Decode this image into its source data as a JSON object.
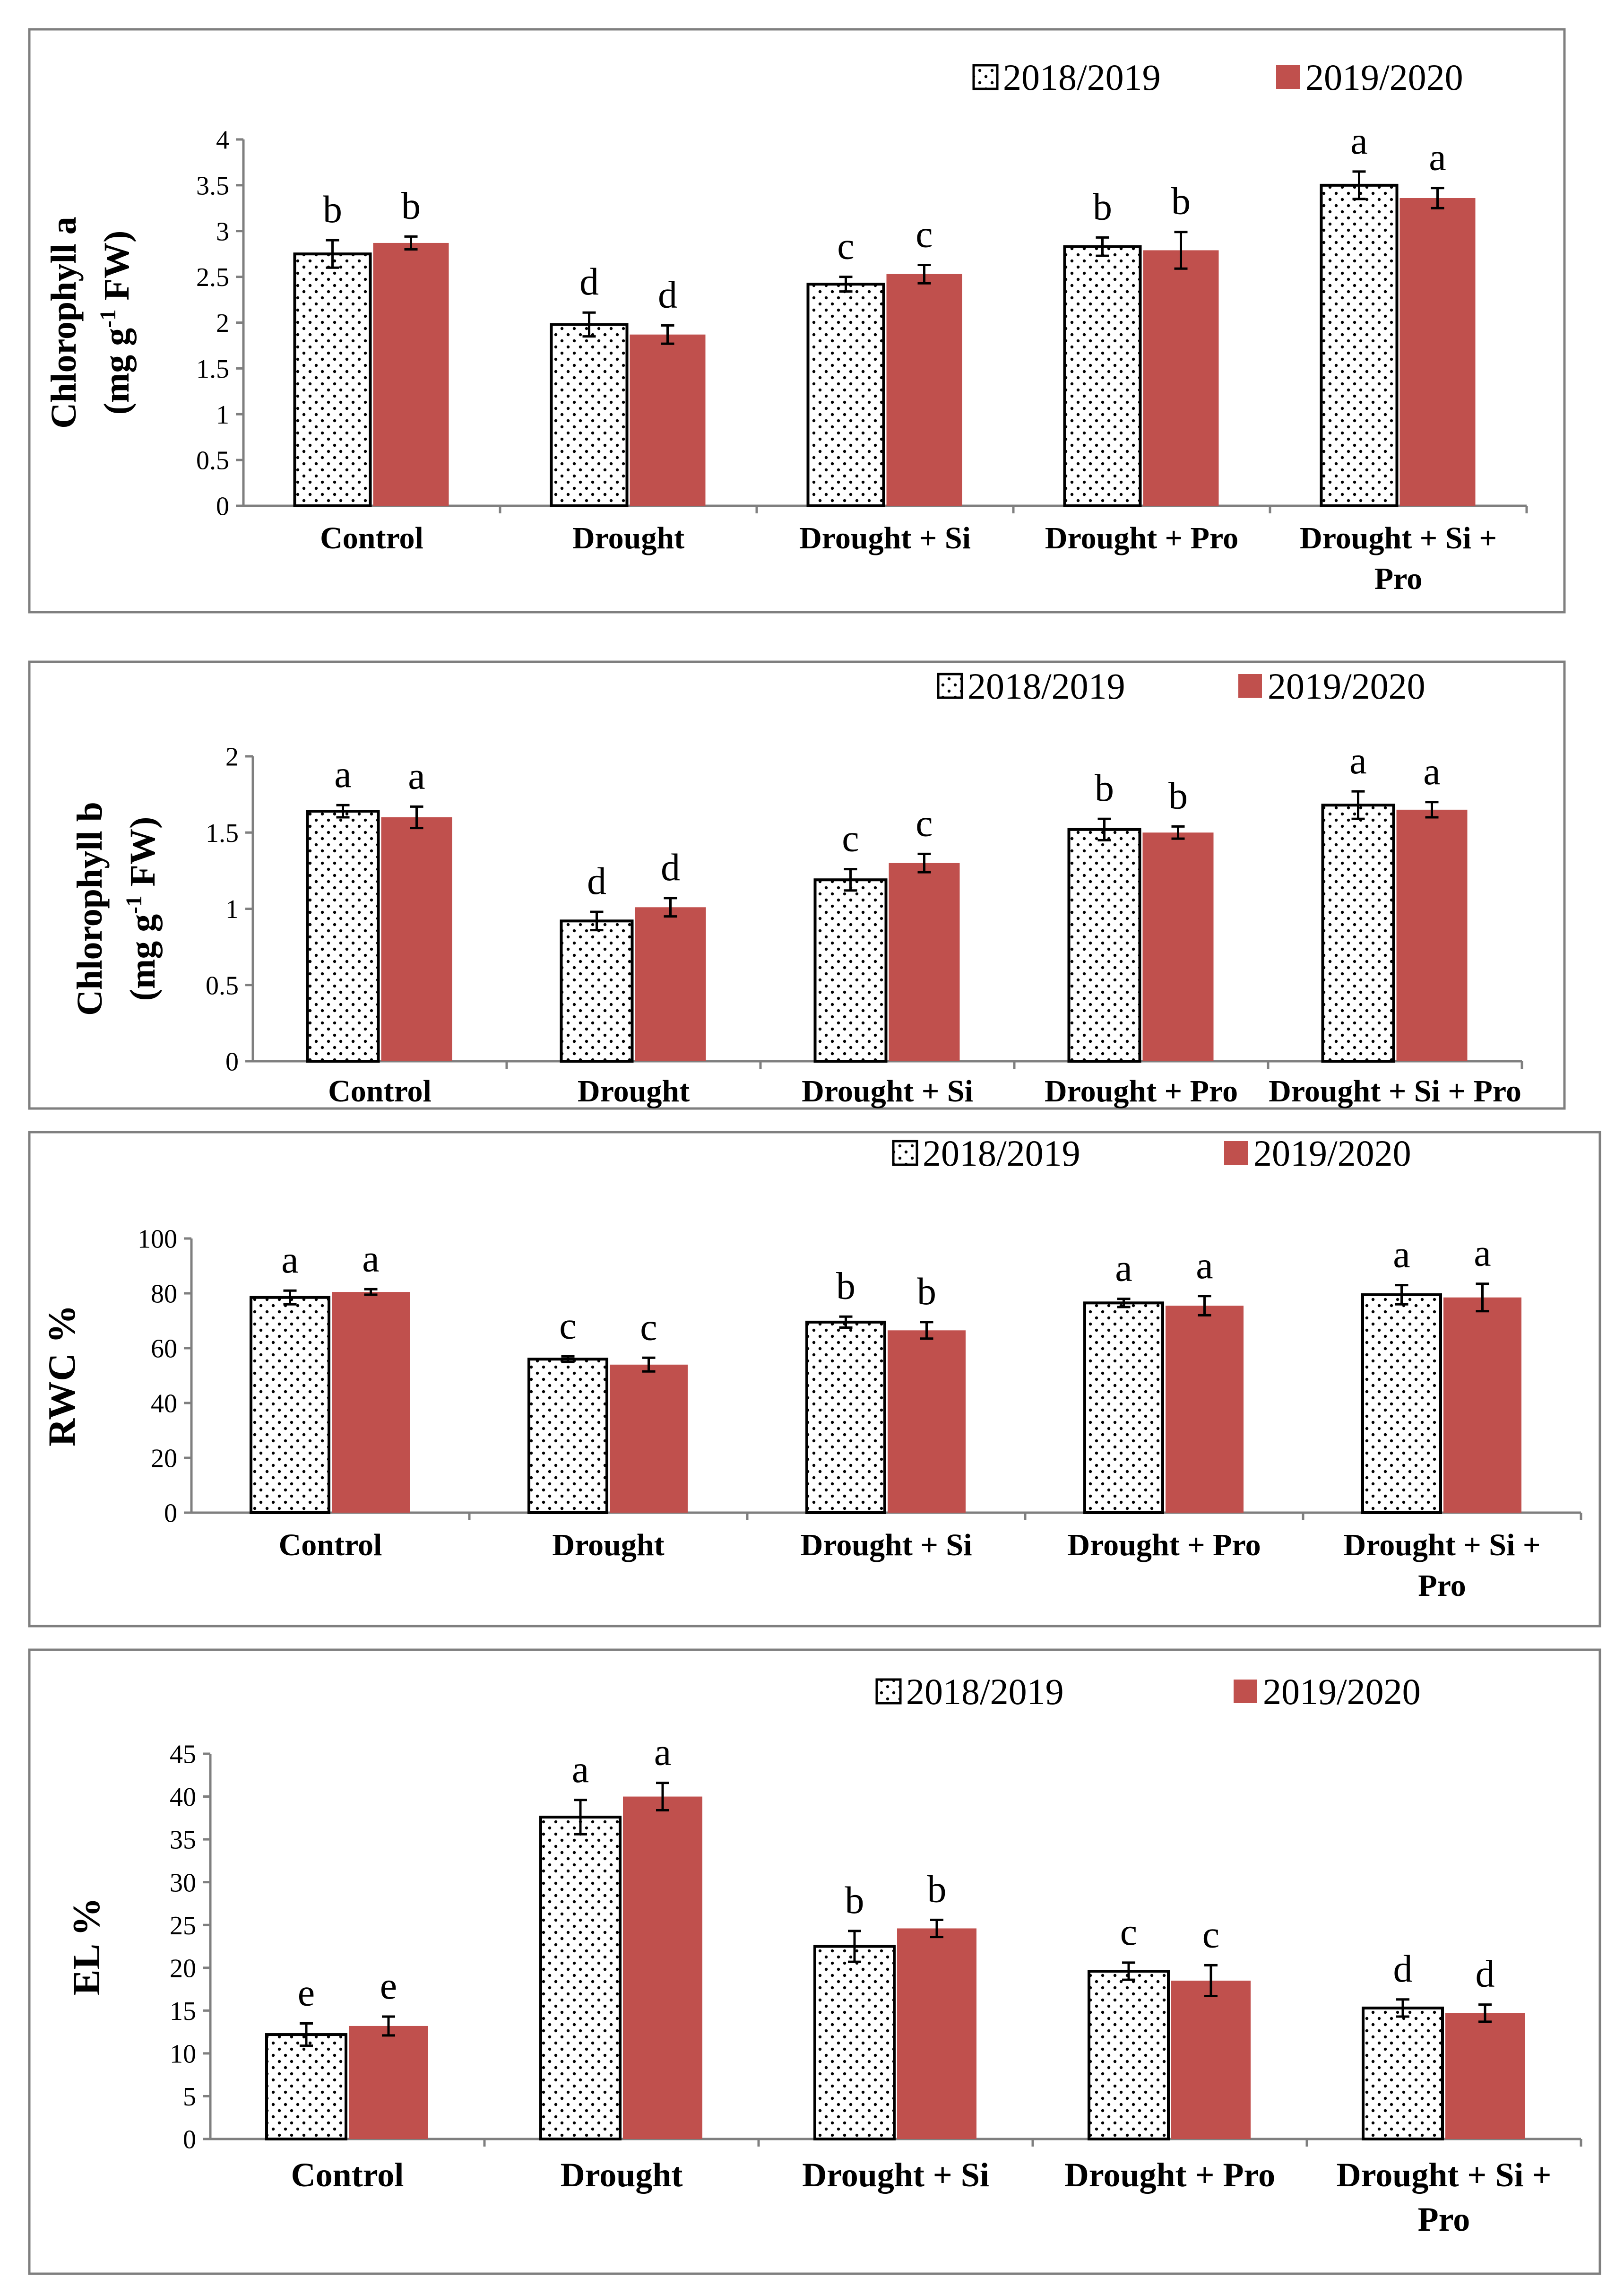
{
  "legend": {
    "series_1": "2018/2019",
    "series_2": "2019/2020"
  },
  "colors": {
    "series_2_fill": "#c0504d",
    "series_1_fill": "#ffffff",
    "stroke": "#000000",
    "frame": "#7f7f7f",
    "axis": "#7f7f7f"
  },
  "chart_data": [
    {
      "type": "bar",
      "title": "",
      "ylabel": [
        "Chlorophyll a",
        "(mg g-1 FW)"
      ],
      "ylim": [
        0,
        4
      ],
      "yticks": [
        "0",
        "0.5",
        "1",
        "1.5",
        "2",
        "2.5",
        "3",
        "3.5",
        "4"
      ],
      "categories": [
        [
          "Control"
        ],
        [
          "Drought"
        ],
        [
          "Drought + Si"
        ],
        [
          "Drought + Pro"
        ],
        [
          "Drought + Si +",
          "Pro"
        ]
      ],
      "series": [
        {
          "name": "2018/2019",
          "values": [
            2.75,
            1.98,
            2.42,
            2.83,
            3.5
          ],
          "errors": [
            0.15,
            0.13,
            0.08,
            0.1,
            0.15
          ],
          "letters": [
            "b",
            "d",
            "c",
            "b",
            "a"
          ]
        },
        {
          "name": "2019/2020",
          "values": [
            2.87,
            1.87,
            2.53,
            2.79,
            3.36
          ],
          "errors": [
            0.07,
            0.1,
            0.1,
            0.2,
            0.11
          ],
          "letters": [
            "b",
            "d",
            "c",
            "b",
            "a"
          ]
        }
      ]
    },
    {
      "type": "bar",
      "title": "",
      "ylabel": [
        "Chlorophyll b",
        "(mg g-1 FW)"
      ],
      "ylim": [
        0,
        2
      ],
      "yticks": [
        "0",
        "0.5",
        "1",
        "1.5",
        "2"
      ],
      "categories": [
        [
          "Control"
        ],
        [
          "Drought"
        ],
        [
          "Drought + Si"
        ],
        [
          "Drought + Pro"
        ],
        [
          "Drought + Si + Pro"
        ]
      ],
      "series": [
        {
          "name": "2018/2019",
          "values": [
            1.64,
            0.92,
            1.19,
            1.52,
            1.68
          ],
          "errors": [
            0.04,
            0.06,
            0.07,
            0.07,
            0.09
          ],
          "letters": [
            "a",
            "d",
            "c",
            "b",
            "a"
          ]
        },
        {
          "name": "2019/2020",
          "values": [
            1.6,
            1.01,
            1.3,
            1.5,
            1.65
          ],
          "errors": [
            0.07,
            0.06,
            0.06,
            0.04,
            0.05
          ],
          "letters": [
            "a",
            "d",
            "c",
            "b",
            "a"
          ]
        }
      ]
    },
    {
      "type": "bar",
      "title": "",
      "ylabel": [
        "RWC %"
      ],
      "ylim": [
        0,
        100
      ],
      "yticks": [
        "0",
        "20",
        "40",
        "60",
        "80",
        "100"
      ],
      "categories": [
        [
          "Control"
        ],
        [
          "Drought"
        ],
        [
          "Drought + Si"
        ],
        [
          "Drought + Pro"
        ],
        [
          "Drought + Si +",
          "Pro"
        ]
      ],
      "series": [
        {
          "name": "2018/2019",
          "values": [
            78.5,
            56,
            69.5,
            76.5,
            79.5
          ],
          "errors": [
            2.5,
            1,
            2,
            1.5,
            3.5
          ],
          "letters": [
            "a",
            "c",
            "b",
            "a",
            "a"
          ]
        },
        {
          "name": "2019/2020",
          "values": [
            80.5,
            54,
            66.5,
            75.5,
            78.5
          ],
          "errors": [
            1,
            2.5,
            3,
            3.5,
            5
          ],
          "letters": [
            "a",
            "c",
            "b",
            "a",
            "a"
          ]
        }
      ]
    },
    {
      "type": "bar",
      "title": "",
      "ylabel": [
        "EL %"
      ],
      "ylim": [
        0,
        45
      ],
      "yticks": [
        "0",
        "5",
        "10",
        "15",
        "20",
        "25",
        "30",
        "35",
        "40",
        "45"
      ],
      "categories": [
        [
          "Control"
        ],
        [
          "Drought"
        ],
        [
          "Drought + Si"
        ],
        [
          "Drought + Pro"
        ],
        [
          "Drought + Si +",
          "Pro"
        ]
      ],
      "series": [
        {
          "name": "2018/2019",
          "values": [
            12.2,
            37.6,
            22.5,
            19.6,
            15.3
          ],
          "errors": [
            1.3,
            2,
            1.8,
            1,
            1
          ],
          "letters": [
            "e",
            "a",
            "b",
            "c",
            "d"
          ]
        },
        {
          "name": "2019/2020",
          "values": [
            13.2,
            40,
            24.6,
            18.5,
            14.7
          ],
          "errors": [
            1.1,
            1.6,
            1,
            1.8,
            1
          ],
          "letters": [
            "e",
            "a",
            "b",
            "c",
            "d"
          ]
        }
      ]
    }
  ]
}
